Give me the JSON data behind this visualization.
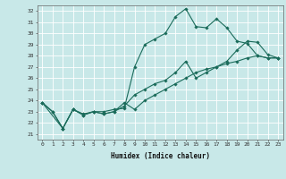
{
  "xlabel": "Humidex (Indice chaleur)",
  "background_color": "#c8e8e8",
  "grid_color": "#ffffff",
  "line_color": "#1a6b5a",
  "xlim": [
    -0.5,
    23.5
  ],
  "ylim": [
    20.5,
    32.5
  ],
  "yticks": [
    21,
    22,
    23,
    24,
    25,
    26,
    27,
    28,
    29,
    30,
    31,
    32
  ],
  "xticks": [
    0,
    1,
    2,
    3,
    4,
    5,
    6,
    7,
    8,
    9,
    10,
    11,
    12,
    13,
    14,
    15,
    16,
    17,
    18,
    19,
    20,
    21,
    22,
    23
  ],
  "line1_x": [
    0,
    1,
    2,
    3,
    4,
    5,
    6,
    7,
    8,
    9,
    10,
    11,
    12,
    13,
    14,
    15,
    16,
    17,
    18,
    19,
    20,
    21,
    22,
    23
  ],
  "line1_y": [
    23.8,
    23.0,
    21.5,
    23.2,
    22.8,
    23.0,
    23.0,
    23.2,
    23.3,
    27.0,
    29.0,
    29.5,
    30.0,
    31.5,
    32.2,
    30.6,
    30.5,
    31.3,
    30.5,
    29.3,
    29.1,
    28.0,
    27.8,
    27.8
  ],
  "line2_x": [
    0,
    1,
    2,
    3,
    4,
    5,
    6,
    7,
    8,
    9,
    10,
    11,
    12,
    13,
    14,
    15,
    16,
    17,
    18,
    19,
    20,
    21,
    22,
    23
  ],
  "line2_y": [
    23.8,
    23.0,
    21.5,
    23.2,
    22.7,
    23.0,
    22.8,
    23.0,
    23.5,
    24.5,
    25.0,
    25.5,
    25.8,
    26.5,
    27.5,
    26.0,
    26.5,
    27.0,
    27.5,
    28.5,
    29.3,
    29.2,
    28.1,
    27.8
  ],
  "line3_x": [
    0,
    2,
    3,
    4,
    5,
    6,
    7,
    8,
    9,
    10,
    11,
    12,
    13,
    14,
    15,
    16,
    17,
    18,
    19,
    20,
    21,
    22,
    23
  ],
  "line3_y": [
    23.8,
    21.5,
    23.2,
    22.7,
    23.0,
    22.8,
    23.0,
    23.8,
    23.2,
    24.0,
    24.5,
    25.0,
    25.5,
    26.0,
    26.5,
    26.8,
    27.0,
    27.3,
    27.5,
    27.8,
    28.0,
    27.8,
    27.8
  ]
}
